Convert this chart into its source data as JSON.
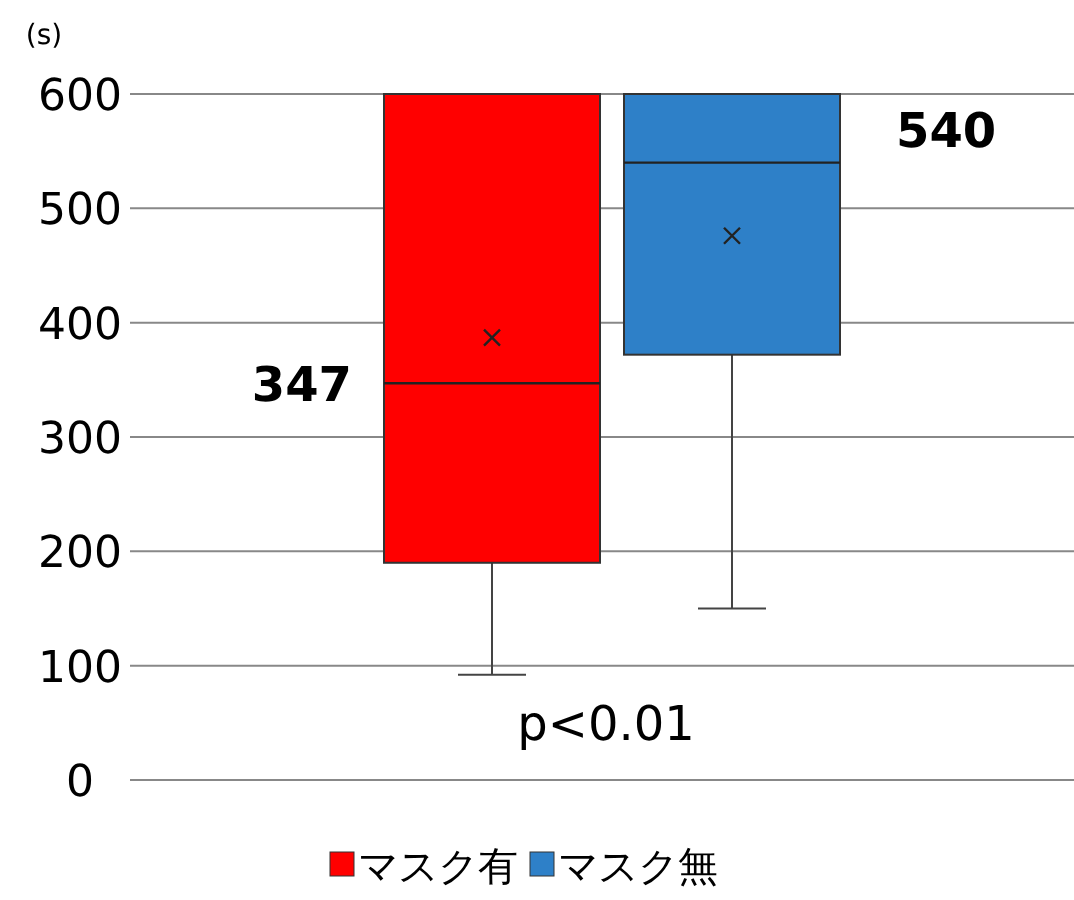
{
  "chart_data": {
    "type": "box",
    "ylabel": "(s)",
    "categories": [
      null
    ],
    "series": [
      {
        "name": "マスク有",
        "color": "#ff0000",
        "boxes": [
          {
            "low": 92,
            "q1": 190,
            "median": 347,
            "q3": 600,
            "high": 600,
            "mean": 387
          }
        ]
      },
      {
        "name": "マスク無",
        "color": "#2e80c8",
        "boxes": [
          {
            "low": 150,
            "q1": 372,
            "median": 540,
            "q3": 600,
            "high": 600,
            "mean": 476
          }
        ]
      }
    ],
    "annotations": [
      "347",
      "540",
      "p<0.01"
    ],
    "ylim": [
      0,
      600
    ],
    "yticks": [
      0,
      100,
      200,
      300,
      400,
      500,
      600
    ],
    "grid": "y",
    "legend": "bottom"
  }
}
